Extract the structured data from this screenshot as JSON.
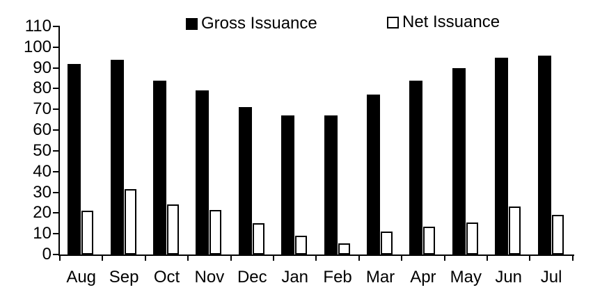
{
  "chart_data": {
    "type": "bar",
    "title": "",
    "categories": [
      "Aug",
      "Sep",
      "Oct",
      "Nov",
      "Dec",
      "Jan",
      "Feb",
      "Mar",
      "Apr",
      "May",
      "Jun",
      "Jul"
    ],
    "series": [
      {
        "name": "Gross Issuance",
        "fill": "#000000",
        "stroke": "#000000",
        "values": [
          92,
          94,
          84,
          79,
          71,
          67,
          67,
          77,
          84,
          90,
          95,
          96
        ]
      },
      {
        "name": "Net Issuance",
        "fill": "#ffffff",
        "stroke": "#000000",
        "values": [
          21,
          31.5,
          24,
          21.5,
          15,
          9,
          5.5,
          11,
          13.5,
          15.5,
          23,
          19
        ]
      }
    ],
    "xlabel": "",
    "ylabel": "",
    "ylim": [
      0,
      110
    ],
    "ytick_step": 10,
    "ytick_labels": [
      "0",
      "10",
      "20",
      "30",
      "40",
      "50",
      "60",
      "70",
      "80",
      "90",
      "100",
      "110"
    ],
    "grid": false,
    "legend_position": "top-inside",
    "axis_color": "#000000",
    "background_color": "#ffffff",
    "text_color": "#000000"
  }
}
